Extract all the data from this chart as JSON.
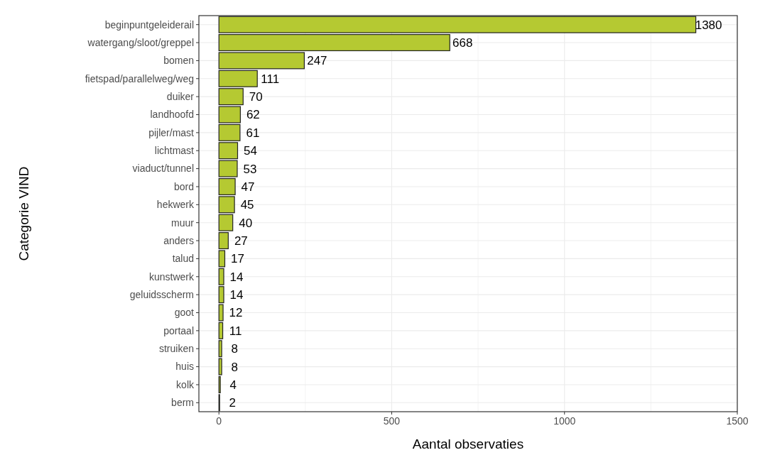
{
  "chart_data": {
    "type": "bar",
    "orientation": "horizontal",
    "xlabel": "Aantal observaties",
    "ylabel": "Categorie VIND",
    "categories": [
      "beginpuntgeleiderail",
      "watergang/sloot/greppel",
      "bomen",
      "fietspad/parallelweg/weg",
      "duiker",
      "landhoofd",
      "pijler/mast",
      "lichtmast",
      "viaduct/tunnel",
      "bord",
      "hekwerk",
      "muur",
      "anders",
      "talud",
      "kunstwerk",
      "geluidsscherm",
      "goot",
      "portaal",
      "struiken",
      "huis",
      "kolk",
      "berm"
    ],
    "values": [
      1380,
      668,
      247,
      111,
      70,
      62,
      61,
      54,
      53,
      47,
      45,
      40,
      27,
      17,
      14,
      14,
      12,
      11,
      8,
      8,
      4,
      2
    ],
    "color": "#b5c932",
    "data_labels": true,
    "grid": true,
    "xlim": [
      -58,
      1500
    ],
    "xticks": [
      0,
      {
        "value": 250,
        "label": null
      },
      500,
      {
        "value": 750,
        "label": null
      },
      1000,
      {
        "value": 1250,
        "label": null
      },
      1500
    ]
  }
}
